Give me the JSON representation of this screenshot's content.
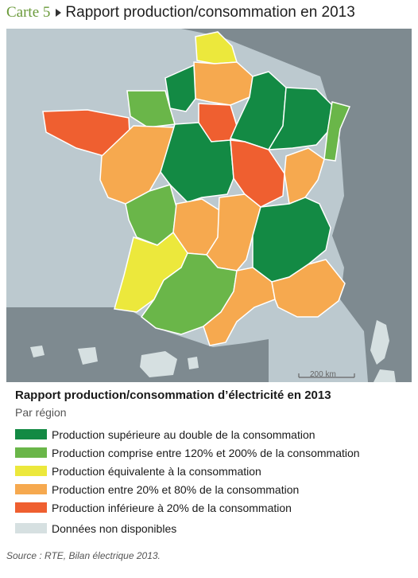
{
  "header": {
    "carte": "Carte 5",
    "title": "Rapport production/consommation en 2013"
  },
  "map": {
    "scale_label": "200 km"
  },
  "legend": {
    "title": "Rapport production/consommation d’électricité en 2013",
    "subtitle": "Par région",
    "items": [
      {
        "label": "Production supérieure au double de la consommation",
        "color": "#138a44"
      },
      {
        "label": "Production comprise entre 120% et 200% de la consommation",
        "color": "#6ab649"
      },
      {
        "label": "Production équivalente à la consommation",
        "color": "#ece83c"
      },
      {
        "label": "Production entre 20% et 80% de la consommation",
        "color": "#f6a94f"
      },
      {
        "label": "Production inférieure à 20% de la consommation",
        "color": "#ef5f30"
      },
      {
        "label": "Données non disponibles",
        "color": "#d6e0e1"
      }
    ]
  },
  "source": "Source : RTE, Bilan électrique 2013."
}
